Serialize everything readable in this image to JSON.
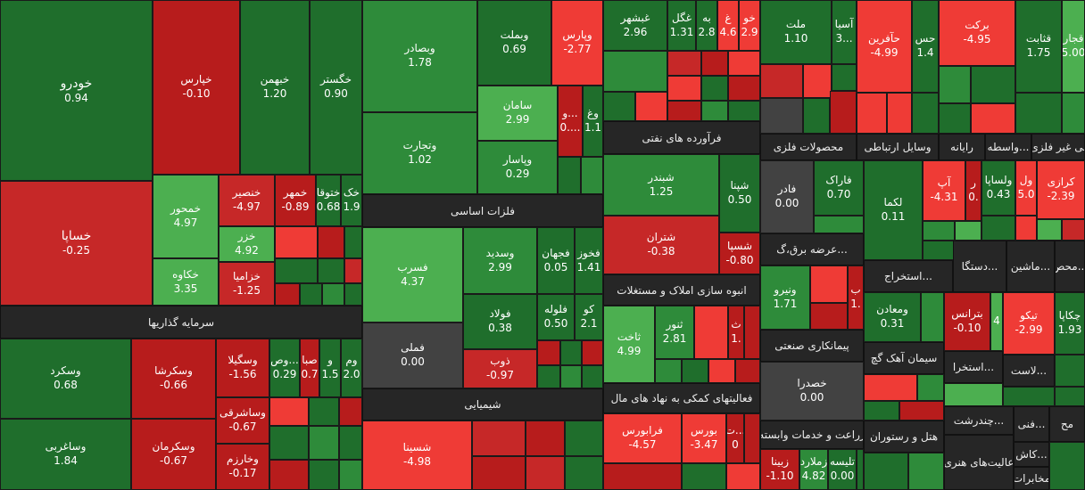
{
  "tiles": [
    {
      "id": "khodro",
      "name": "خودرو",
      "val": "0.94"
    },
    {
      "id": "khapars",
      "name": "خپارس",
      "val": "-0.10"
    },
    {
      "id": "khbahman",
      "name": "خبهمن",
      "val": "1.20"
    },
    {
      "id": "khgostar",
      "name": "خگستر",
      "val": "0.90"
    },
    {
      "id": "khsapa",
      "name": "خساپا",
      "val": "-0.25"
    },
    {
      "id": "khmehvar",
      "name": "خمحور",
      "val": "4.97"
    },
    {
      "id": "khenser",
      "name": "خنصير",
      "val": "-4.97"
    },
    {
      "id": "khmehr",
      "name": "خمهر",
      "val": "-0.89"
    },
    {
      "id": "khtooka",
      "name": "ختوقا",
      "val": "0.68"
    },
    {
      "id": "khak",
      "name": "خک",
      "val": "1.9"
    },
    {
      "id": "khazar",
      "name": "خزر",
      "val": "4.92"
    },
    {
      "id": "khakaveh",
      "name": "خکاوه",
      "val": "3.35"
    },
    {
      "id": "khazamia",
      "name": "خزامیا",
      "val": "-1.25"
    },
    {
      "id": "vaskard",
      "name": "وسکرد",
      "val": "0.68"
    },
    {
      "id": "vaskosha",
      "name": "وسکرشا",
      "val": "-0.66"
    },
    {
      "id": "vasgila",
      "name": "وسگیلا",
      "val": "-1.56"
    },
    {
      "id": "vaskesh",
      "name": "وص...",
      "val": "0.29"
    },
    {
      "id": "vasapa",
      "name": "صبا",
      "val": "0.7"
    },
    {
      "id": "va",
      "name": "و",
      "val": "1.5"
    },
    {
      "id": "vam",
      "name": "وم",
      "val": "2.0"
    },
    {
      "id": "vasharghi",
      "name": "وساشرقی",
      "val": "-0.67"
    },
    {
      "id": "vasaghrabi",
      "name": "وساغربی",
      "val": "1.84"
    },
    {
      "id": "vaskerman",
      "name": "وسکرمان",
      "val": "-0.67"
    },
    {
      "id": "vakharazm",
      "name": "وخارزم",
      "val": "-0.17"
    },
    {
      "id": "vabsadar",
      "name": "وبصادر",
      "val": "1.78"
    },
    {
      "id": "vabmelat",
      "name": "وبملت",
      "val": "0.69"
    },
    {
      "id": "vaparsian",
      "name": "وپارس",
      "val": "-2.77"
    },
    {
      "id": "vatejarat",
      "name": "وتجارت",
      "val": "1.02"
    },
    {
      "id": "saman",
      "name": "سامان",
      "val": "2.99"
    },
    {
      "id": "vadots",
      "name": "و...",
      "val": "0...."
    },
    {
      "id": "vag",
      "name": "وغ",
      "val": "1.1"
    },
    {
      "id": "vapasar",
      "name": "وپاسار",
      "val": "0.29"
    },
    {
      "id": "fasrob",
      "name": "فسرب",
      "val": "4.37"
    },
    {
      "id": "vasadid",
      "name": "وسدید",
      "val": "2.99"
    },
    {
      "id": "fajhan",
      "name": "فجهان",
      "val": "0.05"
    },
    {
      "id": "fakhooz",
      "name": "فخوز",
      "val": "1.41"
    },
    {
      "id": "foolad",
      "name": "فولاد",
      "val": "0.38"
    },
    {
      "id": "felooleh",
      "name": "فلوله",
      "val": "0.50"
    },
    {
      "id": "fakoo",
      "name": "کو",
      "val": "2.1"
    },
    {
      "id": "famelli",
      "name": "فملی",
      "val": "0.00"
    },
    {
      "id": "zob",
      "name": "ذوب",
      "val": "-0.97"
    },
    {
      "id": "shasina",
      "name": "شسینا",
      "val": "-4.98"
    },
    {
      "id": "ghshahr",
      "name": "غبشهر",
      "val": "2.96"
    },
    {
      "id": "ghgol",
      "name": "غگل",
      "val": "1.31"
    },
    {
      "id": "beh",
      "name": "به",
      "val": "2.8"
    },
    {
      "id": "gh",
      "name": "غ",
      "val": "4.6"
    },
    {
      "id": "kho",
      "name": "خو",
      "val": "2.9"
    },
    {
      "id": "shebandar",
      "name": "شبندر",
      "val": "1.25"
    },
    {
      "id": "shaina",
      "name": "شپنا",
      "val": "0.50"
    },
    {
      "id": "shetran",
      "name": "شتران",
      "val": "-0.38"
    },
    {
      "id": "shasi",
      "name": "شسپا",
      "val": "-0.80"
    },
    {
      "id": "sakht",
      "name": "ثاخت",
      "val": "4.99"
    },
    {
      "id": "sanoor",
      "name": "ثنور",
      "val": "2.81"
    },
    {
      "id": "s1",
      "name": "ث",
      "val": "1."
    },
    {
      "id": "faraboors",
      "name": "فرابورس",
      "val": "-4.57"
    },
    {
      "id": "boors",
      "name": "بورس",
      "val": "-3.47"
    },
    {
      "id": "tdots",
      "name": "ت...",
      "val": "0"
    },
    {
      "id": "melat",
      "name": "ملت",
      "val": "1.10"
    },
    {
      "id": "asia",
      "name": "آسیا",
      "val": "3..."
    },
    {
      "id": "hafarin",
      "name": "حآفرین",
      "val": "-4.99"
    },
    {
      "id": "has",
      "name": "حس",
      "val": "1.4"
    },
    {
      "id": "barekat",
      "name": "برکت",
      "val": "-4.95"
    },
    {
      "id": "ghasabit",
      "name": "قثابت",
      "val": "1.75"
    },
    {
      "id": "ghajar",
      "name": "قجار",
      "val": "5.00"
    },
    {
      "id": "fader",
      "name": "فادر",
      "val": "0.00"
    },
    {
      "id": "farak",
      "name": "فاراک",
      "val": "0.70"
    },
    {
      "id": "lekma",
      "name": "لکما",
      "val": "0.11"
    },
    {
      "id": "ap",
      "name": "آپ",
      "val": "-4.31"
    },
    {
      "id": "r",
      "name": "ر",
      "val": "0."
    },
    {
      "id": "valsapa",
      "name": "ولساپا",
      "val": "0.43"
    },
    {
      "id": "val",
      "name": "ول",
      "val": "5.0"
    },
    {
      "id": "karazi",
      "name": "کرازی",
      "val": "-2.39"
    },
    {
      "id": "vaniro",
      "name": "ونیرو",
      "val": "1.71"
    },
    {
      "id": "b1",
      "name": "ب",
      "val": "1."
    },
    {
      "id": "vamaaden",
      "name": "ومعادن",
      "val": "0.31"
    },
    {
      "id": "batrans",
      "name": "بترانس",
      "val": "-0.10"
    },
    {
      "id": "n4",
      "name": "",
      "val": "4"
    },
    {
      "id": "tikoo",
      "name": "تیکو",
      "val": "-2.99"
    },
    {
      "id": "chakapa",
      "name": "چکاپا",
      "val": "1.93"
    },
    {
      "id": "khasdra",
      "name": "خصدرا",
      "val": "0.00"
    },
    {
      "id": "zaina",
      "name": "زبینا",
      "val": "-1.10"
    },
    {
      "id": "zamlard",
      "name": "زملارد",
      "val": "4.82"
    },
    {
      "id": "telise",
      "name": "تلیسه",
      "val": "0.00"
    }
  ],
  "headers": {
    "sarmayeh": "سرمایه گذاریها",
    "felezat": "فلزات اساسی",
    "shimiaei": "شیمیایی",
    "faravarde": "فرآورده های نفتی",
    "anbooh": "انبوه سازی املاک و مستغلات",
    "faaliat": "فعالیتهای کمکی به نهاد های مال",
    "kani": "نی غیر فلزی",
    "vasete": "واسطه...",
    "rayane": "رایانه",
    "vasayel": "وسایل ارتباطی",
    "mahsoolat": "محصولات فلزی",
    "arzeh": "عرضه برق،گ...",
    "estekhraj": "استخراج...",
    "dastgah": "دستگا...",
    "mashin": "ماشین...",
    "mohas": "محص...",
    "peymankari": "پیمانکاری صنعتی",
    "siman": "سیمان آهک گچ",
    "estekhra2": "استخرا...",
    "lastik": "لاست...",
    "zeraat": "زراعت و خدمات وابسته",
    "hotel": "هتل و رستوران",
    "chandresht": "چندرشت...",
    "fani": "فنی...",
    "mah": "مح",
    "kash": "کاش...",
    "faaliatHonar": "عالیت‌های هنری",
    "mokhaberat": "مخابرات"
  }
}
